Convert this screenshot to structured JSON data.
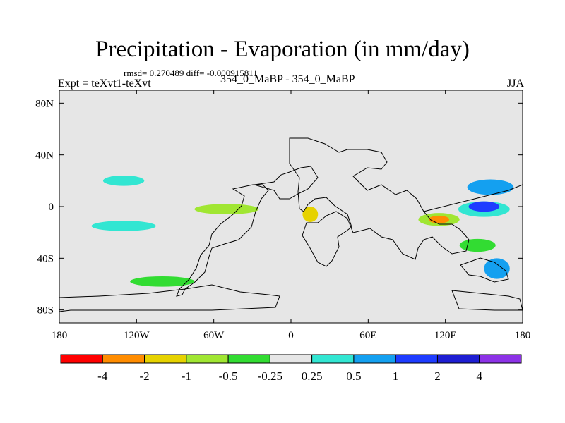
{
  "header": {
    "title": "Precipitation - Evaporation (in mm/day)",
    "stats": "rmsd= 0.270489 diff= -0.000915811",
    "experiment": "Expt = teXvt1-teXvt",
    "case_label": "354_0_MaBP - 354_0_MaBP",
    "season": "JJA"
  },
  "chart_data": {
    "type": "heatmap",
    "title": "Precipitation - Evaporation (in mm/day)",
    "xlabel": "",
    "ylabel": "",
    "xlim": [
      -180,
      180
    ],
    "ylim": [
      -90,
      90
    ],
    "x_ticks": [
      {
        "value": -180,
        "label": "180"
      },
      {
        "value": -120,
        "label": "120W"
      },
      {
        "value": -60,
        "label": "60W"
      },
      {
        "value": 0,
        "label": "0"
      },
      {
        "value": 60,
        "label": "60E"
      },
      {
        "value": 120,
        "label": "120E"
      },
      {
        "value": 180,
        "label": "180"
      }
    ],
    "y_ticks": [
      {
        "value": 80,
        "label": "80N"
      },
      {
        "value": 40,
        "label": "40N"
      },
      {
        "value": 0,
        "label": "0"
      },
      {
        "value": -40,
        "label": "40S"
      },
      {
        "value": -80,
        "label": "80S"
      }
    ],
    "background_color": "#e6e6e6",
    "colorbar": {
      "colors": [
        "#ff0000",
        "#ff8c00",
        "#e6d200",
        "#a0e632",
        "#32dc32",
        "#e6e6e6",
        "#32e6d2",
        "#14a0f0",
        "#1e3cff",
        "#1e1ed2",
        "#8c32e6"
      ],
      "labels": [
        "-4",
        "-2",
        "-1",
        "-0.5",
        "-0.25",
        "0.25",
        "0.5",
        "1",
        "2",
        "4"
      ]
    },
    "regions": [
      {
        "name": "tropical-pacific-wet",
        "lon": 150,
        "lat": -2,
        "rx": 20,
        "ry": 6,
        "color": "#32e6d2"
      },
      {
        "name": "tropical-pacific-core",
        "lon": 150,
        "lat": 0,
        "rx": 12,
        "ry": 4,
        "color": "#1e3cff"
      },
      {
        "name": "nw-pacific-wet",
        "lon": 155,
        "lat": 15,
        "rx": 18,
        "ry": 6,
        "color": "#14a0f0"
      },
      {
        "name": "indian-ocean-dry",
        "lon": 115,
        "lat": -10,
        "rx": 16,
        "ry": 5,
        "color": "#a0e632"
      },
      {
        "name": "indian-ocean-core",
        "lon": 115,
        "lat": -10,
        "rx": 8,
        "ry": 3,
        "color": "#ff8c00"
      },
      {
        "name": "africa-west-dry",
        "lon": 15,
        "lat": -6,
        "rx": 6,
        "ry": 6,
        "color": "#e6d200"
      },
      {
        "name": "atlantic-wet",
        "lon": -130,
        "lat": -15,
        "rx": 25,
        "ry": 4,
        "color": "#32e6d2"
      },
      {
        "name": "north-pacific-wet",
        "lon": -130,
        "lat": 20,
        "rx": 16,
        "ry": 4,
        "color": "#32e6d2"
      },
      {
        "name": "south-ocean-dry",
        "lon": -100,
        "lat": -58,
        "rx": 25,
        "ry": 4,
        "color": "#32dc32"
      },
      {
        "name": "sw-pacific-wet",
        "lon": 160,
        "lat": -48,
        "rx": 10,
        "ry": 8,
        "color": "#14a0f0"
      },
      {
        "name": "sea-dry",
        "lon": 145,
        "lat": -30,
        "rx": 14,
        "ry": 5,
        "color": "#32dc32"
      },
      {
        "name": "mid-lat-dry",
        "lon": -50,
        "lat": -2,
        "rx": 25,
        "ry": 4,
        "color": "#a0e632"
      }
    ]
  },
  "colorbar_labels": [
    "-4",
    "-2",
    "-1",
    "-0.5",
    "-0.25",
    "0.25",
    "0.5",
    "1",
    "2",
    "4"
  ]
}
